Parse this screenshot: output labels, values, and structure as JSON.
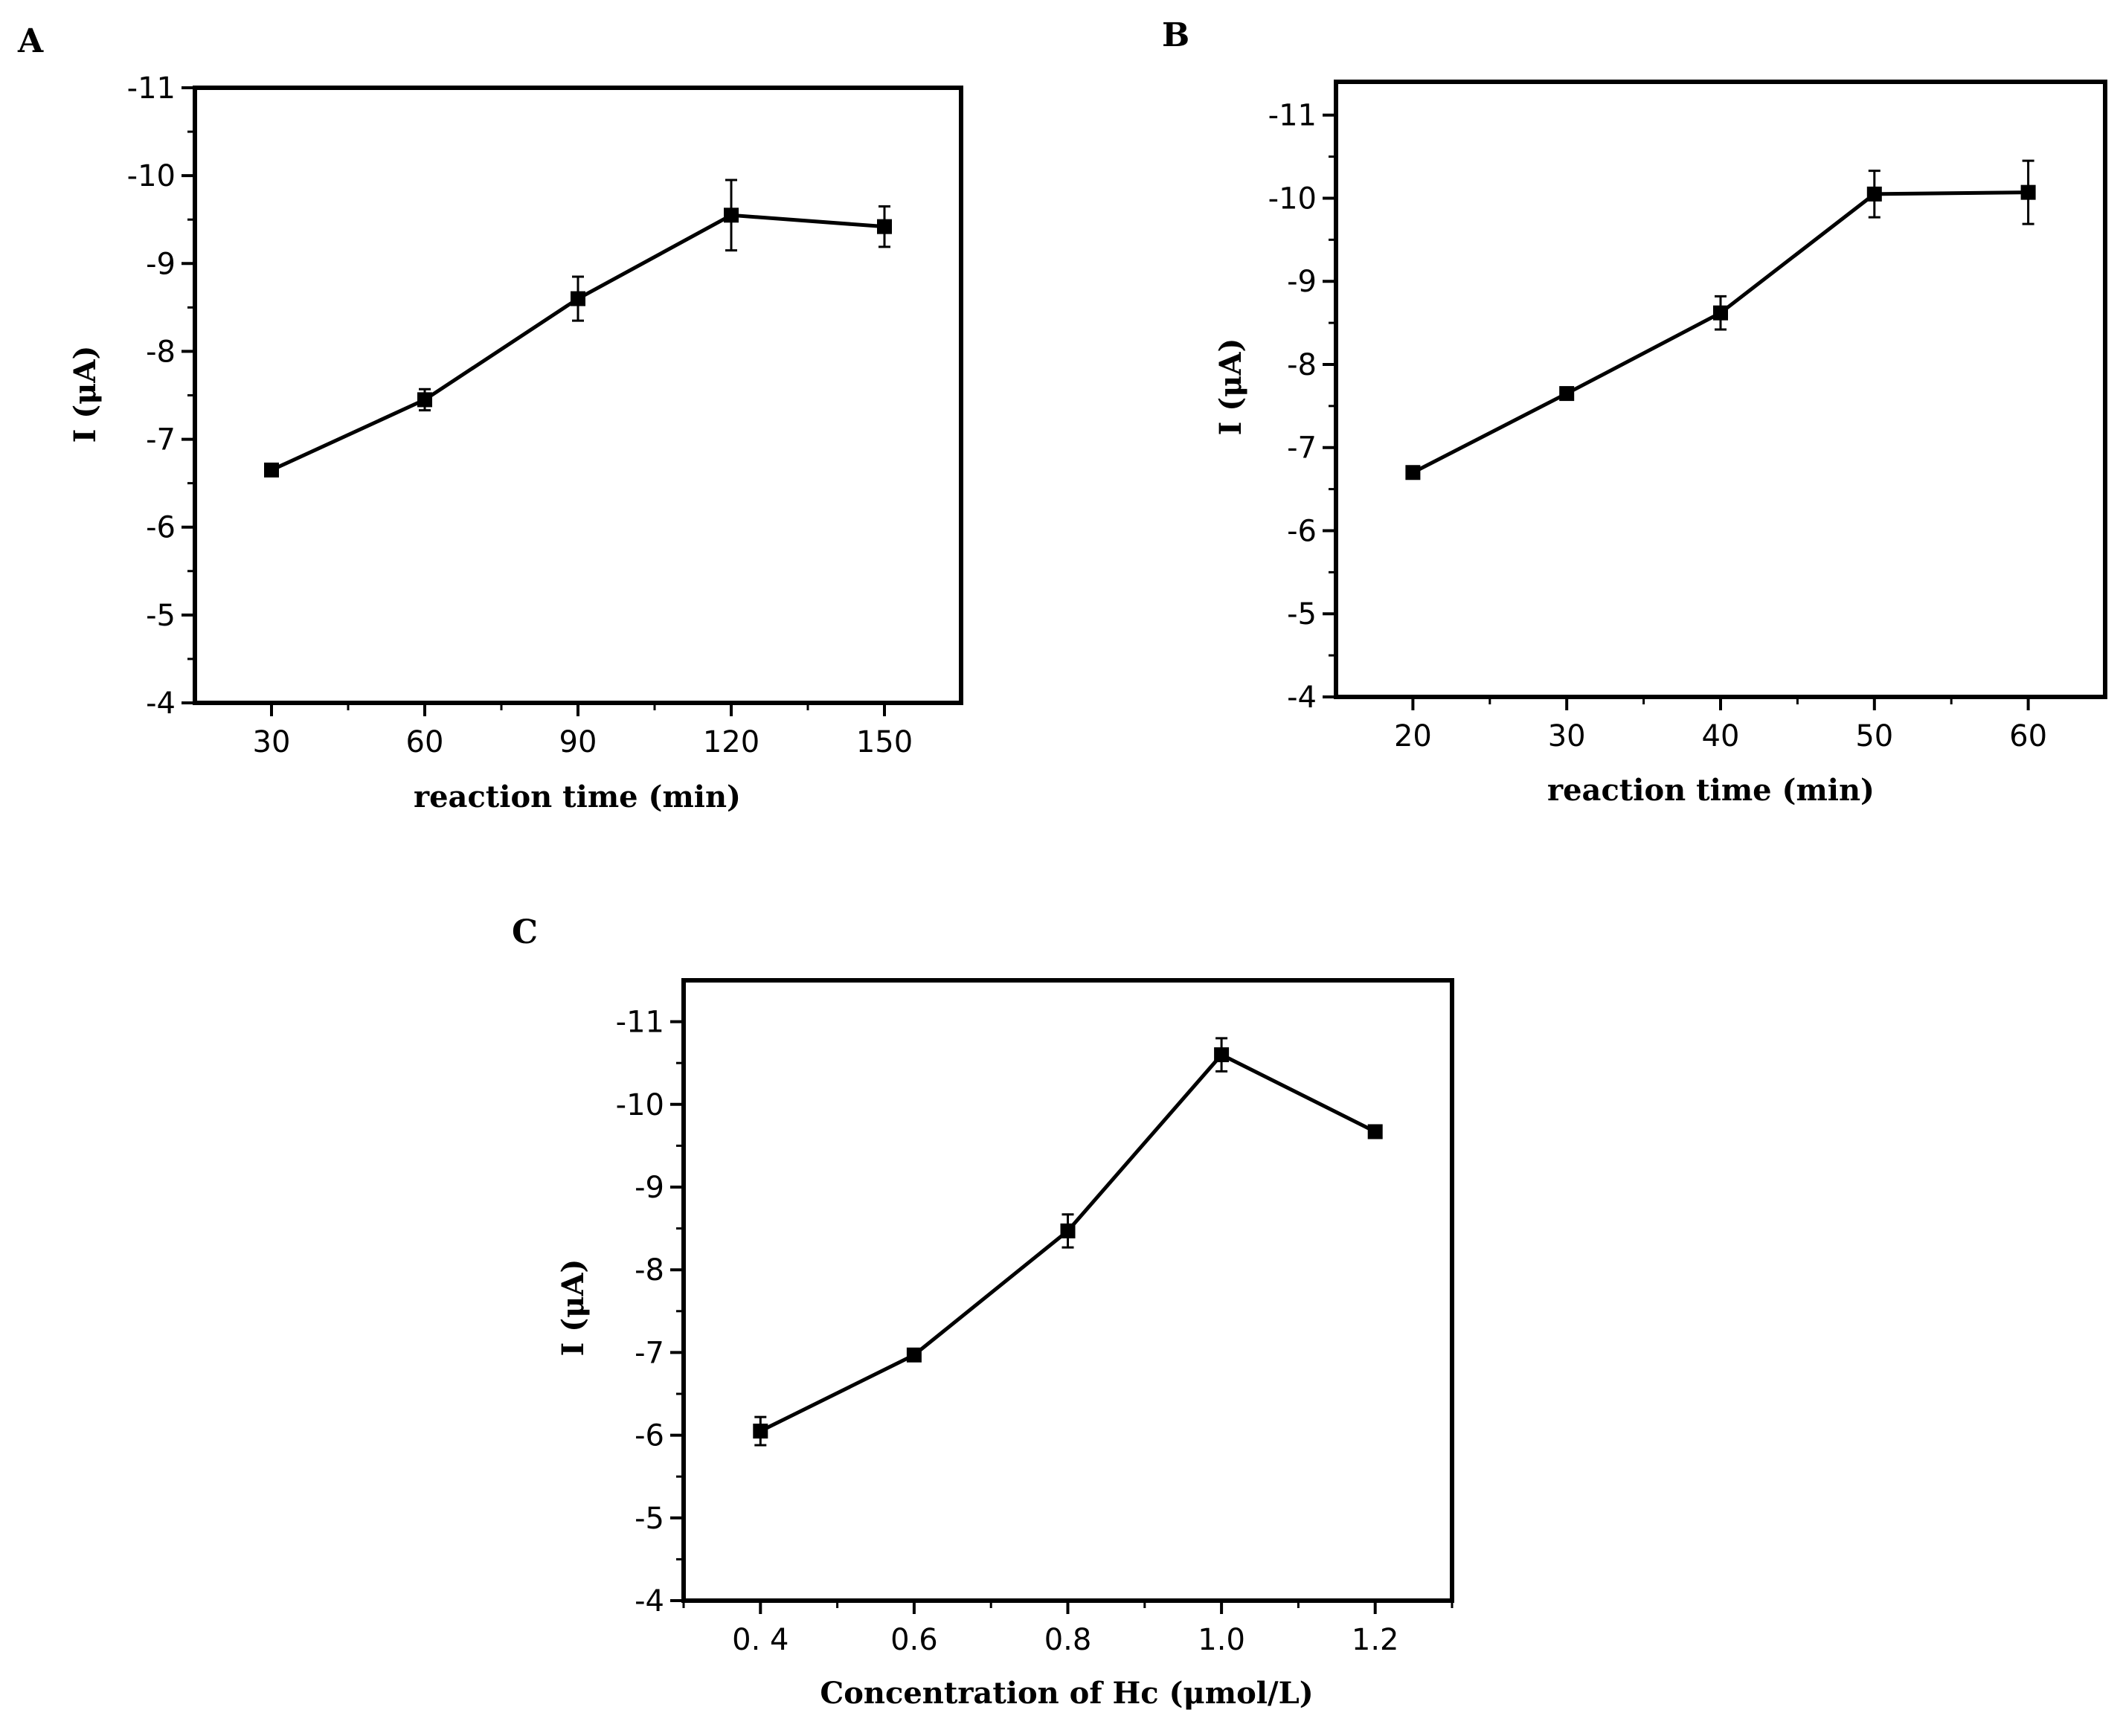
{
  "chart_data": [
    {
      "panel": "A",
      "type": "line",
      "xlabel": "reaction time (min)",
      "ylabel": "I (μA)",
      "x": [
        30,
        60,
        90,
        120,
        150
      ],
      "y": [
        -6.65,
        -7.45,
        -8.6,
        -9.55,
        -9.42
      ],
      "y_error": [
        0.05,
        0.12,
        0.25,
        0.4,
        0.23
      ],
      "xlim": [
        15,
        165
      ],
      "ylim": [
        -4,
        -11
      ],
      "xticks": [
        30,
        60,
        90,
        120,
        150
      ],
      "xtick_labels": [
        "30",
        "60",
        "90",
        "120",
        "150"
      ],
      "yticks": [
        -11,
        -10,
        -9,
        -8,
        -7,
        -6,
        -5,
        -4
      ],
      "ytick_labels": [
        "-11",
        "-10",
        "-9",
        "-8",
        "-7",
        "-6",
        "-5",
        "-4"
      ]
    },
    {
      "panel": "B",
      "type": "line",
      "xlabel": "reaction time (min)",
      "ylabel": "I (μA)",
      "x": [
        20,
        30,
        40,
        50,
        60
      ],
      "y": [
        -6.7,
        -7.65,
        -8.62,
        -10.05,
        -10.07
      ],
      "y_error": [
        0.04,
        0.05,
        0.2,
        0.28,
        0.38
      ],
      "xlim": [
        15,
        65
      ],
      "ylim": [
        -4,
        -11.4
      ],
      "xticks": [
        20,
        30,
        40,
        50,
        60
      ],
      "xtick_labels": [
        "20",
        "30",
        "40",
        "50",
        "60"
      ],
      "yticks": [
        -11,
        -10,
        -9,
        -8,
        -7,
        -6,
        -5,
        -4
      ],
      "ytick_labels": [
        "-11",
        "-10",
        "-9",
        "-8",
        "-7",
        "-6",
        "-5",
        "-4"
      ]
    },
    {
      "panel": "C",
      "type": "line",
      "xlabel": "Concentration of Hc (μmol/L)",
      "ylabel": "I (μA)",
      "x": [
        0.4,
        0.6,
        0.8,
        1.0,
        1.2
      ],
      "y": [
        -6.05,
        -6.97,
        -8.47,
        -10.6,
        -9.67
      ],
      "y_error": [
        0.17,
        0.05,
        0.2,
        0.2,
        0.04
      ],
      "xlim": [
        0.3,
        1.3
      ],
      "ylim": [
        -4,
        -11.5
      ],
      "xticks": [
        0.4,
        0.6,
        0.8,
        1.0,
        1.2
      ],
      "xtick_labels": [
        "0. 4",
        "0.6",
        "0.8",
        "1.0",
        "1.2"
      ],
      "yticks": [
        -11,
        -10,
        -9,
        -8,
        -7,
        -6,
        -5,
        -4
      ],
      "ytick_labels": [
        "-11",
        "-10",
        "-9",
        "-8",
        "-7",
        "-6",
        "-5",
        "-4"
      ]
    }
  ]
}
